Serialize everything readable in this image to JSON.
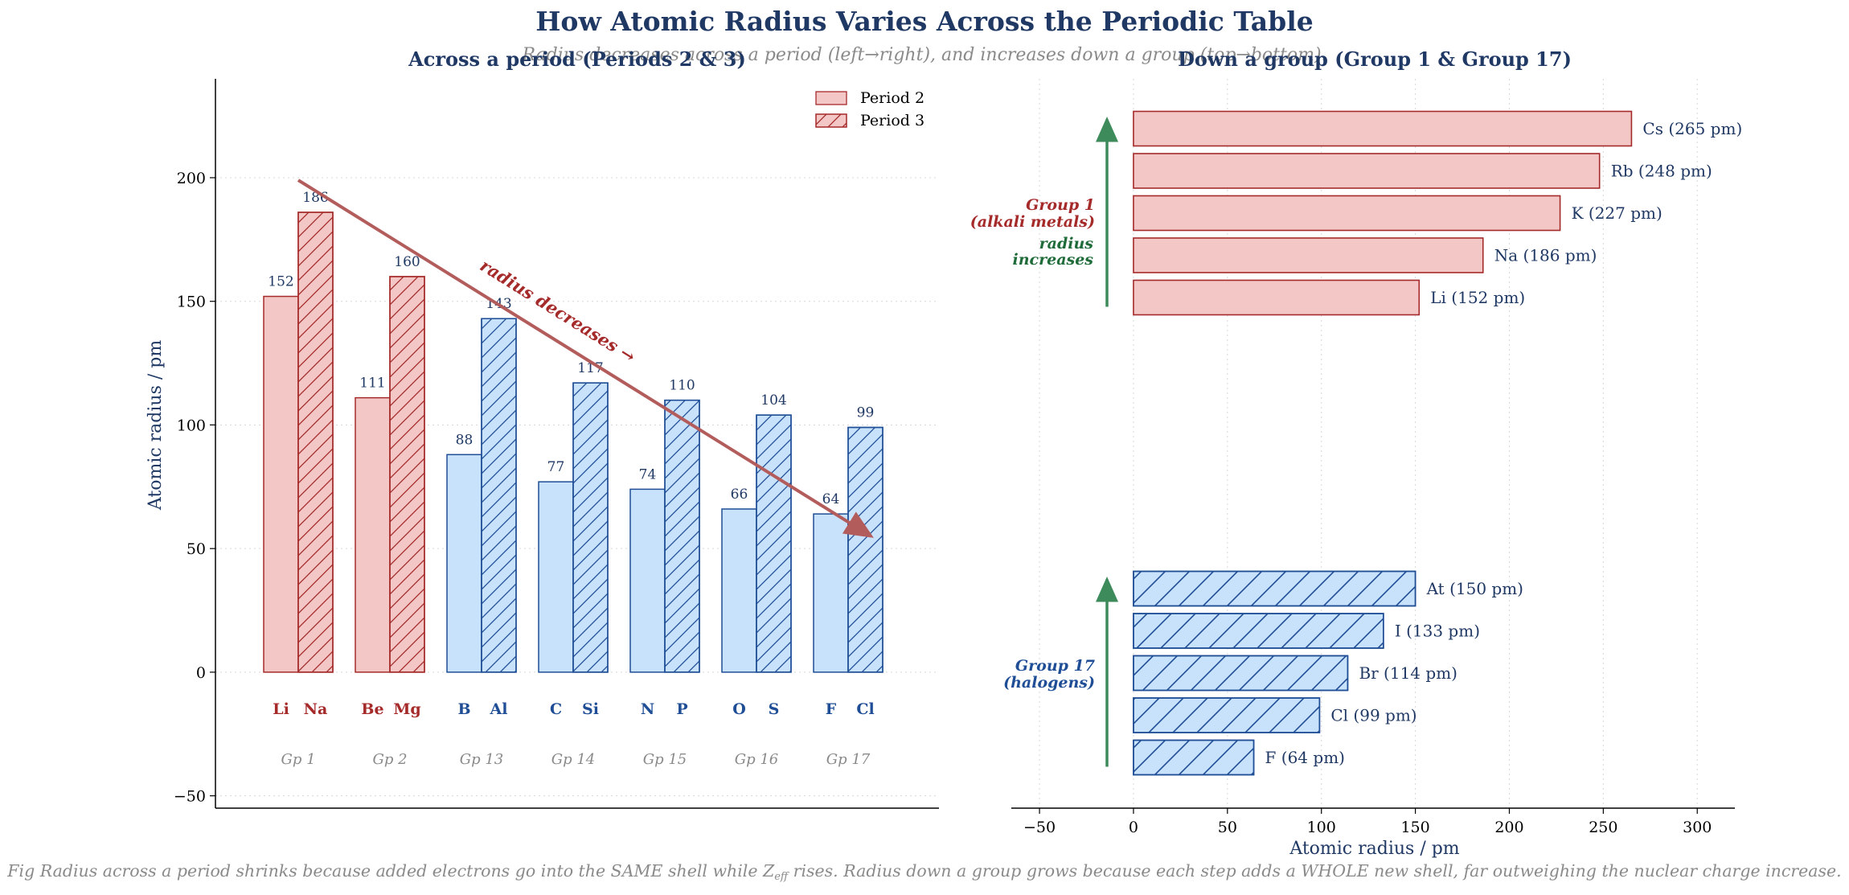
{
  "title": "How Atomic Radius Varies Across the Periodic Table",
  "subtitle": "Radius decreases across a period (left→right), and increases down a group (top→bottom).",
  "caption_parts": [
    "Fig  Radius across a period shrinks because added electrons go into the SAME shell while Z",
    "eff",
    " rises. Radius down a group grows because each step adds a WHOLE new shell, far outweighing the nuclear charge increase."
  ],
  "colors": {
    "title": "#1f3864",
    "subtitle": "#8a8a8a",
    "group1_fill": "#f4c7c7",
    "group1_edge": "#a52a2a",
    "group17_fill": "#c9e2fb",
    "group17_edge": "#1f4e96",
    "trend_arrow": "#b35c5c",
    "increase_arrow": "#3d8a5a",
    "increase_text": "#1f6b3a",
    "grid": "#d8d8d8",
    "gray_text": "#8a8a8a"
  },
  "chart_data": [
    {
      "type": "bar",
      "title": "Across a period  (Periods 2 & 3)",
      "xlabel": "",
      "ylabel": "Atomic radius / pm",
      "ylim": [
        -55,
        240
      ],
      "yticks": [
        -50,
        0,
        50,
        100,
        150,
        200
      ],
      "grid": "horizontal, dotted",
      "legend_position": "top-right",
      "groups": [
        "Gp 1",
        "Gp 2",
        "Gp 13",
        "Gp 14",
        "Gp 15",
        "Gp 16",
        "Gp 17"
      ],
      "series": [
        {
          "name": "Period 2",
          "pattern": "solid",
          "symbols": [
            "Li",
            "Be",
            "B",
            "C",
            "N",
            "O",
            "F"
          ],
          "values": [
            152,
            111,
            88,
            77,
            74,
            66,
            64
          ]
        },
        {
          "name": "Period 3",
          "pattern": "hatched",
          "symbols": [
            "Na",
            "Mg",
            "Al",
            "Si",
            "P",
            "S",
            "Cl"
          ],
          "values": [
            186,
            160,
            143,
            117,
            110,
            104,
            99
          ]
        }
      ],
      "group_colors": [
        "red",
        "red",
        "blue",
        "blue",
        "blue",
        "blue",
        "blue"
      ],
      "annotation": {
        "text": "radius decreases →",
        "arrow_from": [
          0.5,
          199
        ],
        "arrow_to": [
          6.25,
          55
        ]
      }
    },
    {
      "type": "bar",
      "orientation": "horizontal",
      "title": "Down a group  (Group 1 & Group 17)",
      "xlabel": "Atomic radius / pm",
      "ylabel": "",
      "xlim": [
        -65,
        320
      ],
      "xticks": [
        -50,
        0,
        50,
        100,
        150,
        200,
        250,
        300
      ],
      "grid": "vertical, dotted",
      "series": [
        {
          "name": "Group 1",
          "label": "Group 1\n(alkali metals)",
          "pattern": "solid",
          "items": [
            {
              "symbol": "Cs",
              "value": 265,
              "label": "Cs  (265 pm)"
            },
            {
              "symbol": "Rb",
              "value": 248,
              "label": "Rb  (248 pm)"
            },
            {
              "symbol": "K",
              "value": 227,
              "label": "K  (227 pm)"
            },
            {
              "symbol": "Na",
              "value": 186,
              "label": "Na  (186 pm)"
            },
            {
              "symbol": "Li",
              "value": 152,
              "label": "Li  (152 pm)"
            }
          ]
        },
        {
          "name": "Group 17",
          "label": "Group 17\n(halogens)",
          "pattern": "hatched",
          "items": [
            {
              "symbol": "At",
              "value": 150,
              "label": "At  (150 pm)"
            },
            {
              "symbol": "I",
              "value": 133,
              "label": "I  (133 pm)"
            },
            {
              "symbol": "Br",
              "value": 114,
              "label": "Br  (114 pm)"
            },
            {
              "symbol": "Cl",
              "value": 99,
              "label": "Cl  (99 pm)"
            },
            {
              "symbol": "F",
              "value": 64,
              "label": "F  (64 pm)"
            }
          ]
        }
      ],
      "annotation": {
        "text": "radius\nincreases"
      }
    }
  ]
}
